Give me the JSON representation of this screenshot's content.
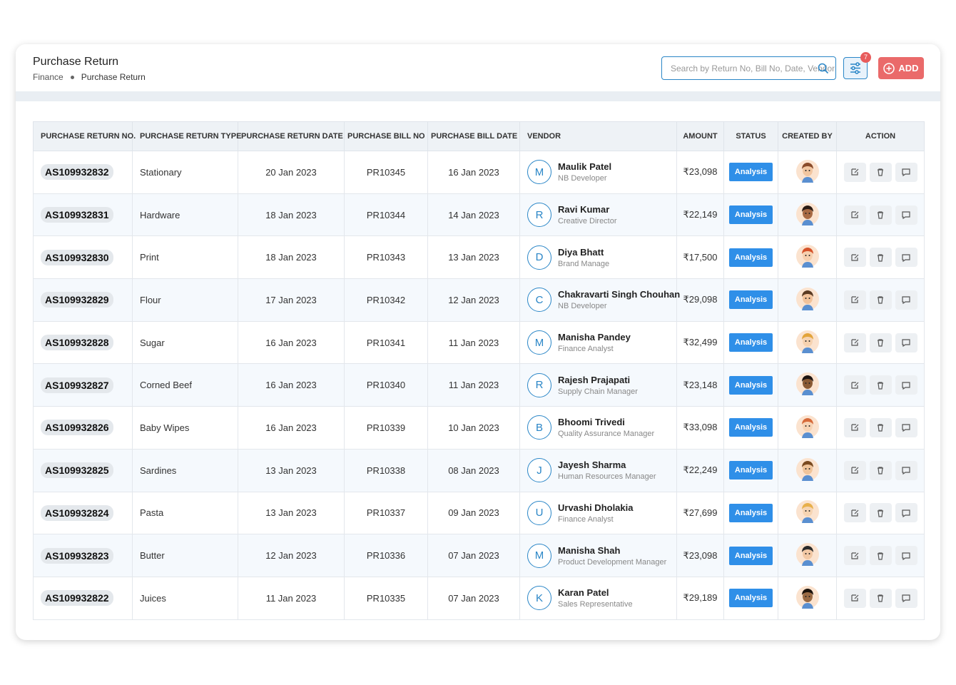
{
  "header": {
    "title": "Purchase Return",
    "breadcrumb": [
      "Finance",
      "Purchase Return"
    ],
    "search_placeholder": "Search by Return No, Bill No, Date, Vendor",
    "filter_badge": "7",
    "add_button": "ADD"
  },
  "table": {
    "columns": [
      "PURCHASE RETURN NO.",
      "PURCHASE RETURN TYPE",
      "PURCHASE RETURN DATE",
      "PURCHASE BILL NO",
      "PURCHASE BILL DATE",
      "VENDOR",
      "AMOUNT",
      "STATUS",
      "CREATED BY",
      "ACTION"
    ],
    "rows": [
      {
        "return_no": "AS109932832",
        "type": "Stationary",
        "return_date": "20 Jan 2023",
        "bill_no": "PR10345",
        "bill_date": "16 Jan 2023",
        "vendor": {
          "initial": "M",
          "name": "Maulik Patel",
          "role": "NB Developer"
        },
        "amount": "₹23,098",
        "status": "Analysis"
      },
      {
        "return_no": "AS109932831",
        "type": "Hardware",
        "return_date": "18 Jan 2023",
        "bill_no": "PR10344",
        "bill_date": "14 Jan 2023",
        "vendor": {
          "initial": "R",
          "name": "Ravi Kumar",
          "role": "Creative Director"
        },
        "amount": "₹22,149",
        "status": "Analysis"
      },
      {
        "return_no": "AS109932830",
        "type": "Print",
        "return_date": "18 Jan 2023",
        "bill_no": "PR10343",
        "bill_date": "13 Jan 2023",
        "vendor": {
          "initial": "D",
          "name": "Diya Bhatt",
          "role": "Brand Manage"
        },
        "amount": "₹17,500",
        "status": "Analysis"
      },
      {
        "return_no": "AS109932829",
        "type": "Flour",
        "return_date": "17 Jan 2023",
        "bill_no": "PR10342",
        "bill_date": "12 Jan 2023",
        "vendor": {
          "initial": "C",
          "name": "Chakravarti Singh Chouhan",
          "role": "NB Developer"
        },
        "amount": "₹29,098",
        "status": "Analysis"
      },
      {
        "return_no": "AS109932828",
        "type": "Sugar",
        "return_date": "16 Jan 2023",
        "bill_no": "PR10341",
        "bill_date": "11 Jan 2023",
        "vendor": {
          "initial": "M",
          "name": "Manisha Pandey",
          "role": "Finance Analyst"
        },
        "amount": "₹32,499",
        "status": "Analysis"
      },
      {
        "return_no": "AS109932827",
        "type": "Corned Beef",
        "return_date": "16 Jan 2023",
        "bill_no": "PR10340",
        "bill_date": "11 Jan 2023",
        "vendor": {
          "initial": "R",
          "name": "Rajesh Prajapati",
          "role": "Supply Chain Manager"
        },
        "amount": "₹23,148",
        "status": "Analysis"
      },
      {
        "return_no": "AS109932826",
        "type": "Baby Wipes",
        "return_date": "16 Jan 2023",
        "bill_no": "PR10339",
        "bill_date": "10 Jan 2023",
        "vendor": {
          "initial": "B",
          "name": "Bhoomi Trivedi",
          "role": "Quality Assurance Manager"
        },
        "amount": "₹33,098",
        "status": "Analysis"
      },
      {
        "return_no": "AS109932825",
        "type": "Sardines",
        "return_date": "13 Jan 2023",
        "bill_no": "PR10338",
        "bill_date": "08 Jan 2023",
        "vendor": {
          "initial": "J",
          "name": "Jayesh Sharma",
          "role": "Human Resources Manager"
        },
        "amount": "₹22,249",
        "status": "Analysis"
      },
      {
        "return_no": "AS109932824",
        "type": "Pasta",
        "return_date": "13 Jan 2023",
        "bill_no": "PR10337",
        "bill_date": "09 Jan 2023",
        "vendor": {
          "initial": "U",
          "name": "Urvashi Dholakia",
          "role": "Finance Analyst"
        },
        "amount": "₹27,699",
        "status": "Analysis"
      },
      {
        "return_no": "AS109932823",
        "type": "Butter",
        "return_date": "12 Jan 2023",
        "bill_no": "PR10336",
        "bill_date": "07 Jan 2023",
        "vendor": {
          "initial": "M",
          "name": "Manisha Shah",
          "role": "Product Development Manager"
        },
        "amount": "₹23,098",
        "status": "Analysis"
      },
      {
        "return_no": "AS109932822",
        "type": "Juices",
        "return_date": "11 Jan 2023",
        "bill_no": "PR10335",
        "bill_date": "07 Jan 2023",
        "vendor": {
          "initial": "K",
          "name": "Karan Patel",
          "role": "Sales Representative"
        },
        "amount": "₹29,189",
        "status": "Analysis"
      }
    ]
  }
}
